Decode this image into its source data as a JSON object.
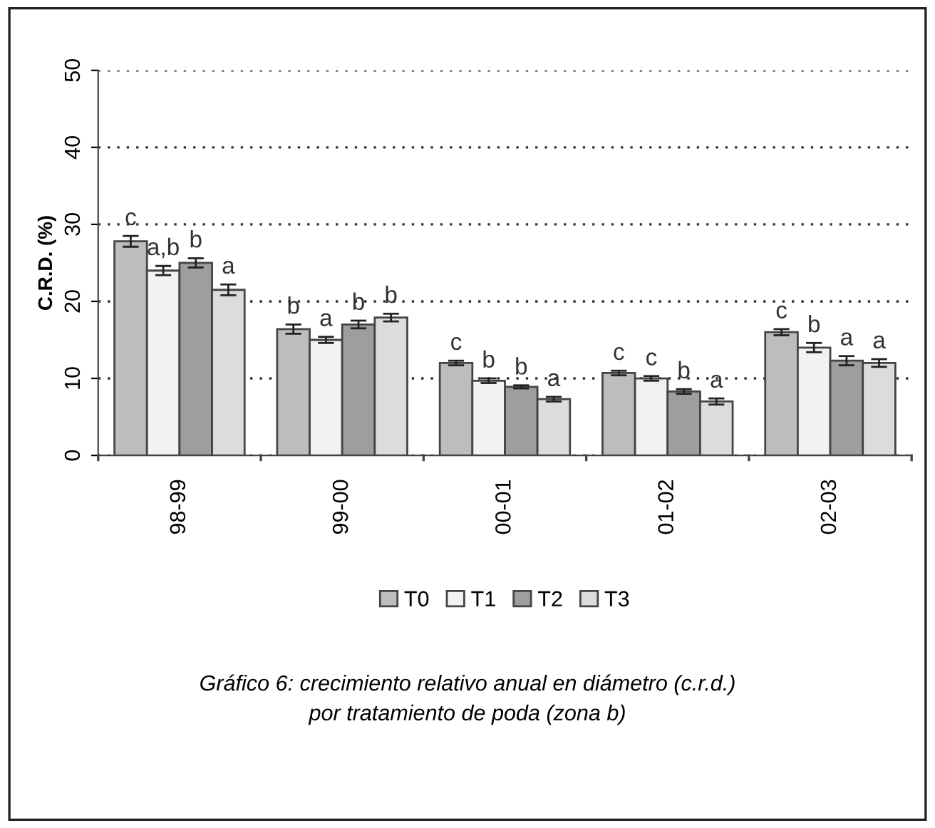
{
  "chart_data": {
    "type": "bar",
    "ylabel": "C.R.D. (%)",
    "categories": [
      "98-99",
      "99-00",
      "00-01",
      "01-02",
      "02-03"
    ],
    "series": [
      {
        "name": "T0",
        "color": "#bdbdbd",
        "values": [
          27.8,
          16.4,
          12,
          10.7,
          16
        ],
        "errors": [
          0.7,
          0.6,
          0.3,
          0.3,
          0.4
        ],
        "value_labels": [
          "c",
          "b",
          "c",
          "c",
          "c"
        ]
      },
      {
        "name": "T1",
        "color": "#f2f2f2",
        "values": [
          24,
          15,
          9.7,
          10,
          14
        ],
        "errors": [
          0.6,
          0.4,
          0.3,
          0.3,
          0.6
        ],
        "value_labels": [
          "a,b",
          "a",
          "b",
          "c",
          "b"
        ]
      },
      {
        "name": "T2",
        "color": "#9e9e9e",
        "values": [
          25,
          17,
          8.9,
          8.3,
          12.3
        ],
        "errors": [
          0.6,
          0.5,
          0.2,
          0.3,
          0.6
        ],
        "value_labels": [
          "b",
          "b",
          "b",
          "b",
          "a"
        ]
      },
      {
        "name": "T3",
        "color": "#dcdcdc",
        "values": [
          21.5,
          17.9,
          7.3,
          7,
          12
        ],
        "errors": [
          0.7,
          0.5,
          0.3,
          0.4,
          0.5
        ],
        "value_labels": [
          "a",
          "b",
          "a",
          "a",
          "a"
        ]
      }
    ],
    "ylim": [
      0,
      50
    ],
    "yticks": [
      0,
      10,
      20,
      30,
      40,
      50
    ],
    "grid": "y",
    "legend": "bottom",
    "annotations": [
      "Gráfico 6: crecimiento relativo anual en diámetro (c.r.d.)\npor tratamiento de poda (zona b)"
    ]
  }
}
